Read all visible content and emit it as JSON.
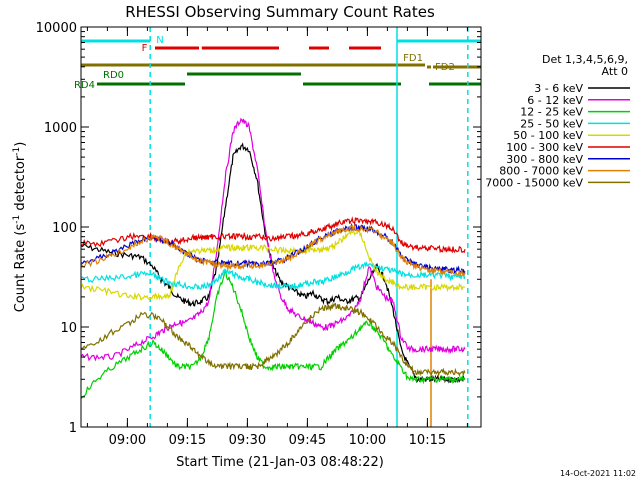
{
  "chart_data": {
    "type": "line",
    "title": "RHESSI Observing Summary Count Rates",
    "xlabel": "Start Time (21-Jan-03 08:48:22)",
    "ylabel_main": "Count Rate (s",
    "ylabel_sup1": "-1",
    "ylabel_mid": " detector",
    "ylabel_sup2": "-1",
    "ylabel_end": ")",
    "yscale": "log",
    "ylim": [
      1,
      10000
    ],
    "xlim": [
      0,
      100
    ],
    "x_unit": "minutes after 08:48:22",
    "yticks": [
      {
        "value": 1,
        "label": "1"
      },
      {
        "value": 10,
        "label": "10"
      },
      {
        "value": 100,
        "label": "100"
      },
      {
        "value": 1000,
        "label": "1000"
      },
      {
        "value": 10000,
        "label": "10000"
      }
    ],
    "xticks": [
      {
        "value": 11.6,
        "label": "09:00"
      },
      {
        "value": 26.6,
        "label": "09:15"
      },
      {
        "value": 41.6,
        "label": "09:30"
      },
      {
        "value": 56.6,
        "label": "09:45"
      },
      {
        "value": 71.6,
        "label": "10:00"
      },
      {
        "value": 86.6,
        "label": "10:15"
      }
    ],
    "legend_header": [
      "Det 1,3,4,5,6,9,",
      "Att 0"
    ],
    "legend_placement": "right",
    "series": [
      {
        "name": "3 - 6 keV",
        "color": "#000000",
        "x": [
          0,
          4,
          8,
          12,
          15,
          18,
          20,
          22,
          24,
          26,
          28,
          30,
          32,
          34,
          36,
          38,
          40,
          42,
          44,
          46,
          48,
          50,
          52,
          54,
          56,
          58,
          60,
          62,
          64,
          66,
          68,
          70,
          72,
          74,
          76,
          78,
          80,
          82,
          84,
          86,
          88,
          90,
          92,
          94,
          96
        ],
        "y": [
          65,
          60,
          55,
          52,
          50,
          40,
          30,
          25,
          20,
          18,
          17,
          18,
          20,
          40,
          150,
          500,
          650,
          600,
          300,
          90,
          40,
          28,
          25,
          22,
          20,
          22,
          19,
          18,
          20,
          18,
          19,
          20,
          30,
          40,
          30,
          15,
          6,
          4,
          3,
          3,
          3,
          3,
          3,
          3,
          3
        ]
      },
      {
        "name": "6 - 12 keV",
        "color": "#e000e0",
        "x": [
          0,
          4,
          8,
          12,
          15,
          18,
          20,
          22,
          24,
          26,
          28,
          30,
          32,
          34,
          36,
          38,
          40,
          42,
          44,
          46,
          48,
          50,
          52,
          54,
          56,
          58,
          60,
          62,
          64,
          66,
          68,
          70,
          72,
          74,
          76,
          78,
          80,
          82,
          84,
          86,
          88,
          90,
          92,
          94,
          96
        ],
        "y": [
          5,
          5,
          5,
          6,
          7,
          8,
          9,
          10,
          11,
          11,
          12,
          14,
          18,
          60,
          300,
          900,
          1200,
          1000,
          400,
          100,
          35,
          20,
          15,
          13,
          12,
          11,
          10,
          10,
          11,
          12,
          14,
          20,
          40,
          25,
          20,
          18,
          8,
          6,
          6,
          6,
          6,
          6,
          6,
          6,
          6
        ]
      },
      {
        "name": "12 - 25 keV",
        "color": "#00d000",
        "x": [
          0,
          4,
          8,
          12,
          15,
          18,
          20,
          22,
          24,
          26,
          28,
          30,
          32,
          34,
          36,
          38,
          40,
          42,
          44,
          46,
          48,
          50,
          52,
          54,
          56,
          58,
          60,
          62,
          64,
          66,
          68,
          70,
          72,
          74,
          76,
          78,
          80,
          82,
          84,
          86,
          88,
          90,
          92,
          94,
          96
        ],
        "y": [
          2,
          3,
          4,
          5,
          6,
          7,
          6,
          5,
          4,
          4,
          4,
          5,
          8,
          20,
          35,
          25,
          15,
          8,
          5,
          4,
          4,
          4,
          4,
          4,
          4,
          4,
          4,
          5,
          6,
          7,
          8,
          10,
          11,
          9,
          7,
          5,
          4,
          3,
          3,
          3,
          3,
          3,
          3,
          3,
          3
        ]
      },
      {
        "name": "25 - 50 keV",
        "color": "#00e0e0",
        "x": [
          0,
          4,
          8,
          12,
          15,
          18,
          20,
          22,
          24,
          26,
          28,
          30,
          32,
          34,
          36,
          38,
          40,
          42,
          44,
          46,
          48,
          50,
          52,
          54,
          56,
          58,
          60,
          62,
          64,
          66,
          68,
          70,
          72,
          74,
          76,
          78,
          80,
          82,
          84,
          86,
          88,
          90,
          92,
          94,
          96
        ],
        "y": [
          30,
          30,
          31,
          32,
          34,
          33,
          30,
          28,
          27,
          26,
          25,
          25,
          26,
          30,
          36,
          34,
          31,
          30,
          28,
          27,
          26,
          26,
          25,
          26,
          27,
          28,
          28,
          30,
          32,
          35,
          38,
          40,
          42,
          40,
          38,
          36,
          34,
          33,
          33,
          33,
          33,
          33,
          32,
          32,
          32
        ]
      },
      {
        "name": "50 - 100 keV",
        "color": "#d8d800",
        "x": [
          0,
          4,
          8,
          12,
          15,
          18,
          20,
          22,
          24,
          26,
          28,
          30,
          32,
          34,
          36,
          38,
          40,
          42,
          44,
          46,
          48,
          50,
          52,
          54,
          56,
          58,
          60,
          62,
          64,
          66,
          68,
          70,
          72,
          74,
          76,
          78,
          80,
          82,
          84,
          86,
          88,
          90,
          92,
          94,
          96
        ],
        "y": [
          25,
          24,
          22,
          20,
          20,
          20,
          20,
          20,
          35,
          55,
          58,
          58,
          58,
          60,
          62,
          62,
          62,
          62,
          62,
          62,
          60,
          58,
          58,
          58,
          58,
          60,
          60,
          62,
          68,
          80,
          90,
          85,
          50,
          35,
          30,
          28,
          25,
          25,
          25,
          25,
          25,
          25,
          25,
          25,
          25
        ]
      },
      {
        "name": "100 - 300 keV",
        "color": "#e00000",
        "x": [
          0,
          4,
          8,
          12,
          15,
          18,
          20,
          22,
          24,
          26,
          28,
          30,
          32,
          34,
          36,
          38,
          40,
          42,
          44,
          46,
          48,
          50,
          52,
          54,
          56,
          58,
          60,
          62,
          64,
          66,
          68,
          70,
          72,
          74,
          76,
          78,
          80,
          82,
          84,
          86,
          88,
          90,
          92,
          94,
          96
        ],
        "y": [
          70,
          68,
          72,
          80,
          82,
          80,
          75,
          70,
          72,
          75,
          78,
          78,
          80,
          80,
          80,
          80,
          80,
          80,
          80,
          78,
          77,
          78,
          80,
          82,
          85,
          90,
          95,
          100,
          108,
          112,
          115,
          115,
          113,
          110,
          105,
          95,
          70,
          65,
          62,
          62,
          62,
          60,
          60,
          60,
          60
        ]
      },
      {
        "name": "300 - 800 keV",
        "color": "#0000d0",
        "x": [
          0,
          4,
          8,
          12,
          15,
          18,
          20,
          22,
          24,
          26,
          28,
          30,
          32,
          34,
          36,
          38,
          40,
          42,
          44,
          46,
          48,
          50,
          52,
          54,
          56,
          58,
          60,
          62,
          64,
          66,
          68,
          70,
          72,
          74,
          76,
          78,
          80,
          82,
          84,
          86,
          88,
          90,
          92,
          94,
          96
        ],
        "y": [
          45,
          48,
          55,
          65,
          75,
          78,
          75,
          70,
          62,
          55,
          50,
          47,
          45,
          44,
          43,
          43,
          43,
          43,
          43,
          43,
          44,
          46,
          50,
          55,
          62,
          70,
          78,
          85,
          90,
          95,
          98,
          98,
          96,
          90,
          80,
          70,
          52,
          45,
          42,
          40,
          38,
          38,
          37,
          37,
          36
        ]
      },
      {
        "name": "800 - 7000 keV",
        "color": "#e08000",
        "x": [
          0,
          4,
          8,
          12,
          15,
          18,
          20,
          22,
          24,
          26,
          28,
          30,
          32,
          34,
          36,
          38,
          40,
          42,
          44,
          46,
          48,
          50,
          52,
          54,
          56,
          58,
          60,
          62,
          64,
          66,
          68,
          70,
          72,
          74,
          76,
          78,
          80,
          82,
          84,
          86,
          88,
          90,
          92,
          94,
          96
        ],
        "y": [
          42,
          45,
          52,
          62,
          72,
          80,
          76,
          70,
          62,
          55,
          50,
          46,
          44,
          42,
          41,
          41,
          41,
          41,
          41,
          42,
          43,
          45,
          48,
          54,
          60,
          68,
          76,
          84,
          90,
          95,
          97,
          97,
          95,
          88,
          78,
          68,
          50,
          44,
          40,
          38,
          37,
          36,
          36,
          35,
          35
        ]
      },
      {
        "name": "7000 - 15000 keV",
        "color": "#807000",
        "x": [
          0,
          4,
          8,
          12,
          15,
          18,
          20,
          22,
          24,
          26,
          28,
          30,
          32,
          34,
          36,
          38,
          40,
          42,
          44,
          46,
          48,
          50,
          52,
          54,
          56,
          58,
          60,
          62,
          64,
          66,
          68,
          70,
          72,
          74,
          76,
          78,
          80,
          82,
          84,
          86,
          88,
          90,
          92,
          94,
          96
        ],
        "y": [
          6,
          7,
          9,
          11,
          13,
          13,
          12,
          10,
          8,
          7,
          6,
          5,
          4.5,
          4,
          4,
          4,
          4,
          4,
          4,
          4.5,
          5,
          6,
          7,
          9,
          11,
          13,
          15,
          16,
          16,
          15.5,
          15,
          14,
          12,
          10,
          8,
          7,
          5,
          4,
          3.5,
          3.5,
          3.5,
          3.5,
          3.5,
          3.5,
          3.5
        ]
      }
    ],
    "annotations": {
      "night": {
        "label": "N",
        "segments": [
          [
            0,
            17.3
          ],
          [
            79,
            100
          ]
        ],
        "color": "#00e0e0"
      },
      "flare": {
        "label": "F",
        "segments": [
          [
            18.5,
            29.5
          ],
          [
            30.2,
            49.5
          ],
          [
            57,
            62
          ],
          [
            67,
            75
          ]
        ],
        "color": "#e00000"
      },
      "fd1": {
        "label": "FD1",
        "segments": [
          [
            0,
            86
          ]
        ],
        "color": "#807000"
      },
      "fd2": {
        "label": "FD2",
        "segments": [
          [
            86.5,
            87.5
          ],
          [
            88,
            100
          ]
        ],
        "color": "#807000"
      },
      "rd0": {
        "label": "RD0",
        "segments": [
          [
            26.5,
            55
          ]
        ],
        "color": "#007000"
      },
      "rd4": {
        "label": "RD4",
        "segments": [
          [
            4,
            26
          ],
          [
            55.5,
            80
          ],
          [
            87,
            100
          ]
        ],
        "color": "#007000"
      },
      "vlines_cyan": [
        17.3,
        79,
        96.7
      ],
      "vline_orange": [
        87.5
      ]
    },
    "timestamp": "14-Oct-2021 11:02"
  }
}
